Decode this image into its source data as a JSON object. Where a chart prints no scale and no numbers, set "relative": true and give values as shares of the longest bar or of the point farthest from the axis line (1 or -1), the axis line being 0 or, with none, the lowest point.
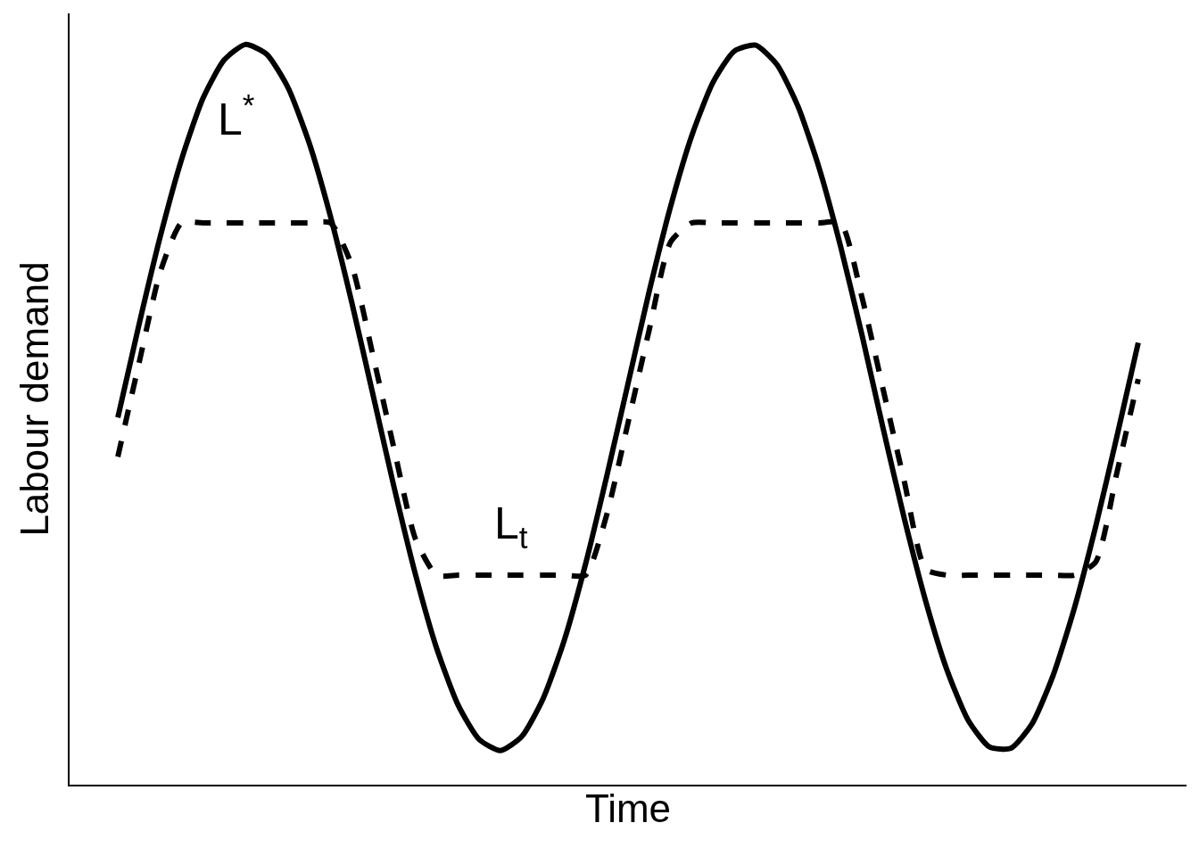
{
  "chart_data": {
    "type": "line",
    "relative": true,
    "xlabel": "Time",
    "ylabel": "Labour demand",
    "legend": false,
    "grid": false,
    "marker": "none",
    "categories": [
      null,
      null,
      null,
      null,
      null,
      null,
      null,
      null,
      null,
      null,
      null,
      null,
      null,
      null,
      null,
      null,
      null,
      null,
      null,
      null,
      null,
      null,
      null,
      null,
      null,
      null,
      null,
      null,
      null,
      null,
      null,
      null,
      null,
      null,
      null,
      null,
      null,
      null,
      null,
      null,
      null,
      null,
      null,
      null,
      null,
      null,
      null,
      null,
      null
    ],
    "series": [
      {
        "name": "L$^{*}$",
        "color": "#000000",
        "line_style": "solid",
        "values": [
          0.496,
          0.622,
          0.741,
          0.845,
          0.927,
          0.979,
          1.0,
          0.987,
          0.942,
          0.867,
          0.768,
          0.652,
          0.527,
          0.401,
          0.284,
          0.184,
          0.108,
          0.061,
          0.046,
          0.065,
          0.116,
          0.195,
          0.298,
          0.417,
          0.542,
          0.667,
          0.781,
          0.877,
          0.949,
          0.991,
          0.999,
          0.973,
          0.916,
          0.832,
          0.727,
          0.608,
          0.481,
          0.359,
          0.248,
          0.155,
          0.087,
          0.051,
          0.049,
          0.082,
          0.148,
          0.239,
          0.349,
          0.471,
          0.597
        ]
      },
      {
        "name": "L$_{t}$",
        "color": "#000000",
        "line_style": "dashed",
        "values": [
          0.443,
          0.57,
          0.693,
          0.759,
          0.759,
          0.759,
          0.759,
          0.759,
          0.759,
          0.759,
          0.759,
          0.702,
          0.58,
          0.453,
          0.332,
          0.283,
          0.283,
          0.283,
          0.283,
          0.283,
          0.283,
          0.283,
          0.283,
          0.365,
          0.489,
          0.615,
          0.733,
          0.759,
          0.759,
          0.759,
          0.759,
          0.759,
          0.759,
          0.759,
          0.759,
          0.659,
          0.534,
          0.409,
          0.291,
          0.283,
          0.283,
          0.283,
          0.283,
          0.283,
          0.283,
          0.283,
          0.301,
          0.422,
          0.548
        ]
      }
    ]
  }
}
